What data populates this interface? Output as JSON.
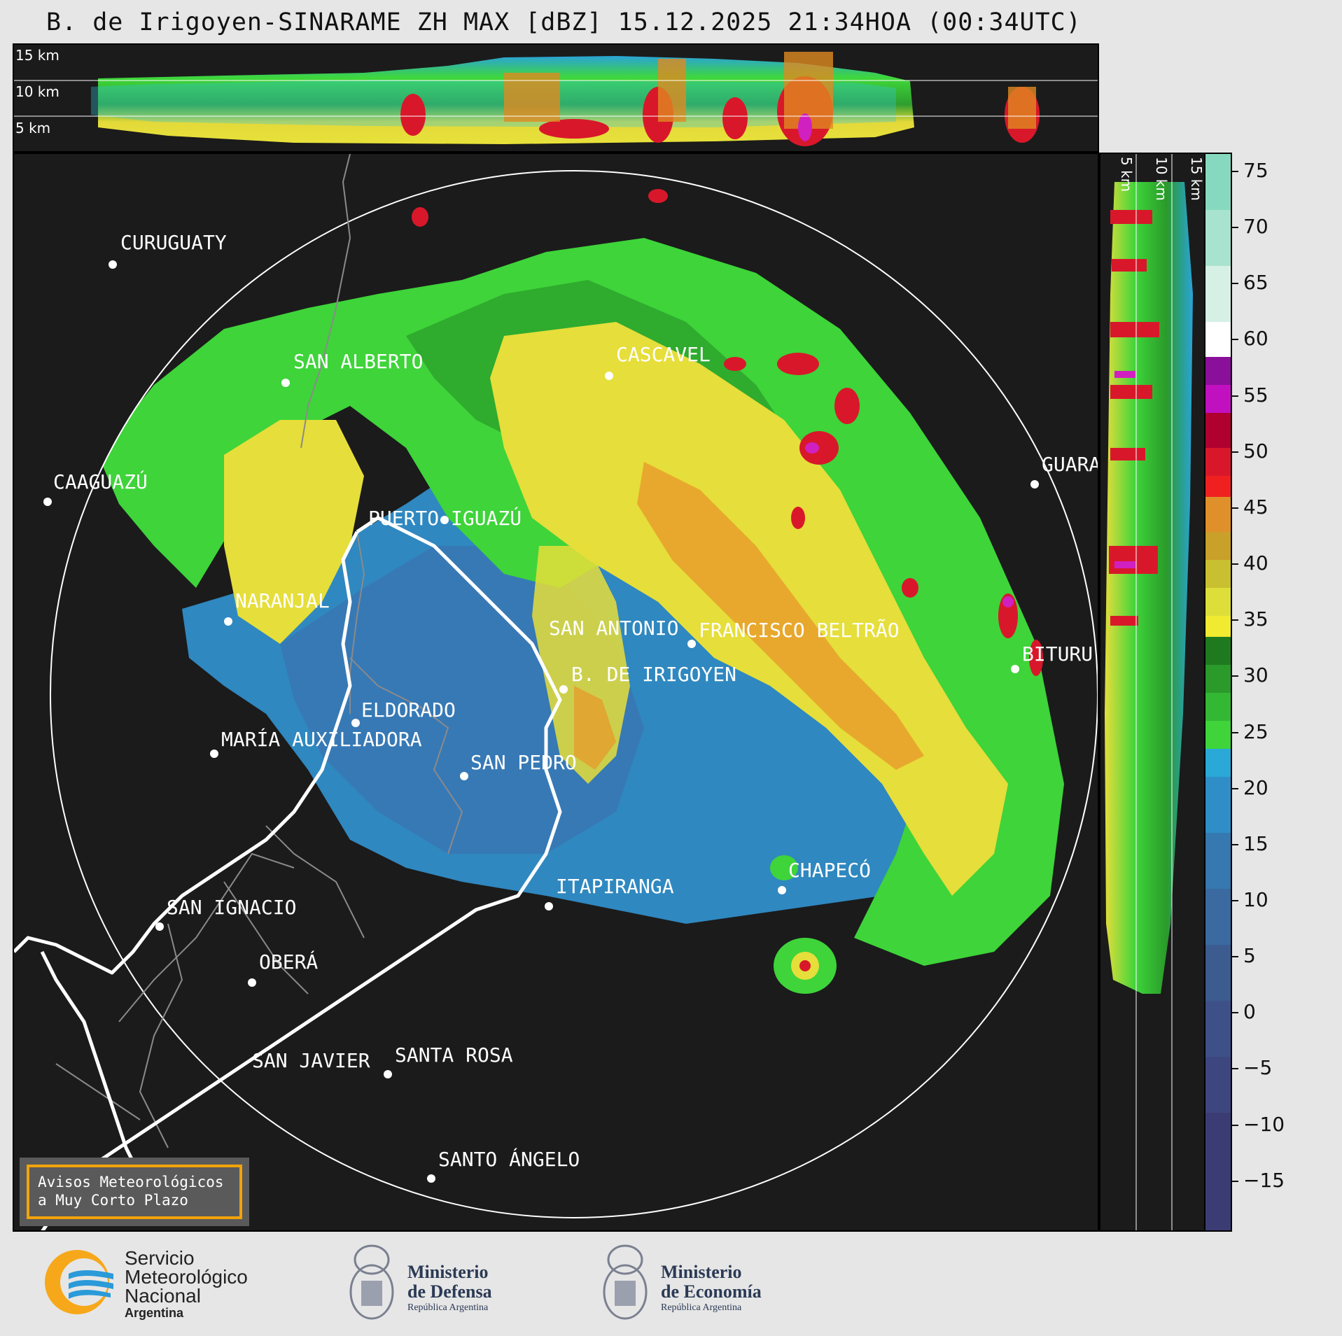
{
  "title": "B. de Irigoyen-SINARAME ZH MAX [dBZ] 15.12.2025 21:34HOA (00:34UTC)",
  "top_profile": {
    "altitude_labels": [
      "15 km",
      "10 km",
      "5 km"
    ]
  },
  "side_profile": {
    "altitude_labels": [
      "5 km",
      "10 km",
      "15 km"
    ]
  },
  "colorbar": {
    "unit": "dBZ",
    "ticks": [
      "75",
      "70",
      "65",
      "60",
      "55",
      "50",
      "45",
      "40",
      "35",
      "30",
      "25",
      "20",
      "15",
      "10",
      "5",
      "0",
      "−5",
      "−10",
      "−15"
    ]
  },
  "cities": [
    {
      "name": "CURUGUATY"
    },
    {
      "name": "SAN ALBERTO"
    },
    {
      "name": "CASCAVEL"
    },
    {
      "name": "CAAGUAZÚ"
    },
    {
      "name": "GUARA"
    },
    {
      "name": "PUERTO IGUAZÚ"
    },
    {
      "name": "NARANJAL"
    },
    {
      "name": "SAN ANTONIO"
    },
    {
      "name": "FRANCISCO BELTRÃO"
    },
    {
      "name": "BITURU"
    },
    {
      "name": "B. DE IRIGOYEN"
    },
    {
      "name": "ELDORADO"
    },
    {
      "name": "MARÍA AUXILIADORA"
    },
    {
      "name": "SAN PEDRO"
    },
    {
      "name": "CHAPECÓ"
    },
    {
      "name": "ITAPIRANGA"
    },
    {
      "name": "SAN IGNACIO"
    },
    {
      "name": "OBERÁ"
    },
    {
      "name": "SAN JAVIER"
    },
    {
      "name": "SANTA ROSA"
    },
    {
      "name": "SANTO ÁNGELO"
    }
  ],
  "notice": {
    "line1": "Avisos Meteorológicos",
    "line2": "a Muy Corto Plazo"
  },
  "logos": {
    "smn": {
      "line1": "Servicio",
      "line2": "Meteorológico",
      "line3": "Nacional",
      "line4": "Argentina"
    },
    "defensa": {
      "line1": "Ministerio",
      "line2": "de Defensa",
      "line3": "República Argentina"
    },
    "economia": {
      "line1": "Ministerio",
      "line2": "de Economía",
      "line3": "República Argentina"
    }
  }
}
